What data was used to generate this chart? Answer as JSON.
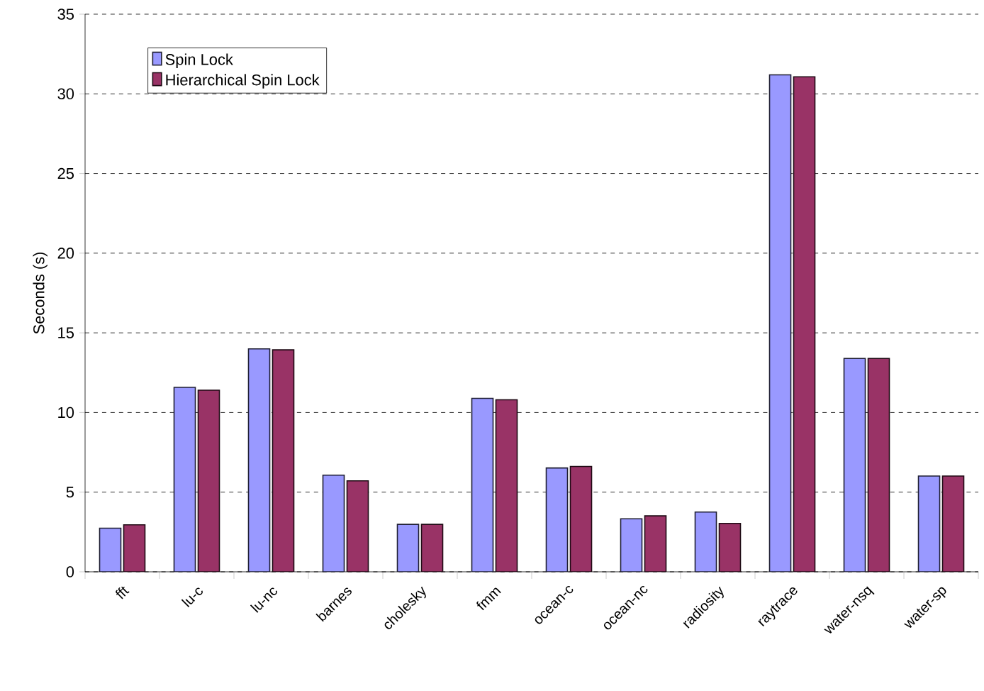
{
  "chart_data": {
    "type": "bar",
    "ylabel": "Seconds (s)",
    "categories": [
      "fft",
      "lu-c",
      "lu-nc",
      "barnes",
      "cholesky",
      "fmm",
      "ocean-c",
      "ocean-nc",
      "radiosity",
      "raytrace",
      "water-nsq",
      "water-sp"
    ],
    "series": [
      {
        "name": "Spin Lock",
        "color": "#9999ff",
        "values": [
          2.74,
          11.58,
          13.99,
          6.07,
          2.98,
          10.89,
          6.52,
          3.33,
          3.75,
          31.19,
          13.39,
          6.01
        ]
      },
      {
        "name": "Hierarchical Spin Lock",
        "color": "#993366",
        "values": [
          2.95,
          11.4,
          13.93,
          5.71,
          2.98,
          10.8,
          6.61,
          3.51,
          3.04,
          31.07,
          13.39,
          6.01
        ]
      }
    ],
    "ylim": [
      0,
      35
    ],
    "yticks": [
      0,
      5,
      10,
      15,
      20,
      25,
      30,
      35
    ],
    "grid": "y",
    "legend": "top left"
  }
}
